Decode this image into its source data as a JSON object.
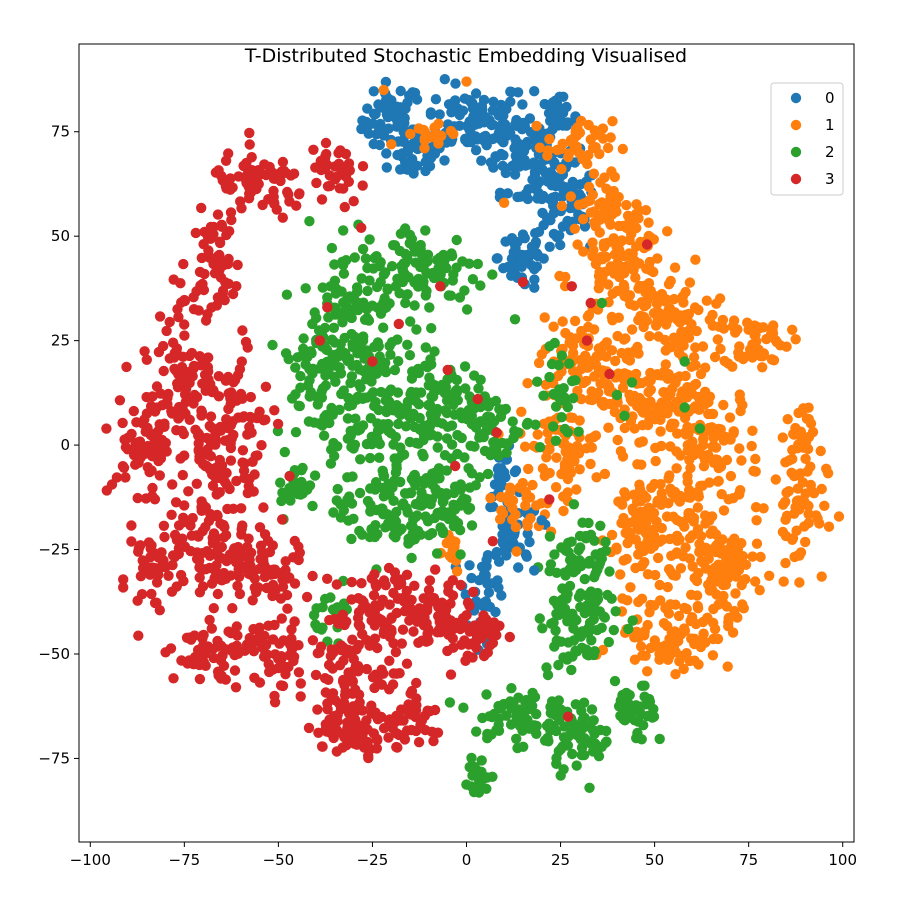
{
  "chart_data": {
    "type": "scatter",
    "title": "T-Distributed Stochastic Embedding Visualised",
    "xlabel": "",
    "ylabel": "",
    "xlim": [
      -103,
      103
    ],
    "ylim": [
      -95,
      96
    ],
    "x_ticks": [
      -100,
      -75,
      -50,
      -25,
      0,
      25,
      50,
      75,
      100
    ],
    "y_ticks": [
      -75,
      -50,
      -25,
      0,
      25,
      50,
      75
    ],
    "x_tick_labels": [
      "−100",
      "−75",
      "−50",
      "−25",
      "0",
      "25",
      "50",
      "75",
      "100"
    ],
    "y_tick_labels": [
      "−75",
      "−50",
      "−25",
      "0",
      "25",
      "50",
      "75"
    ],
    "grid": false,
    "legend_position": "top-right",
    "series": [
      {
        "name": "0",
        "color": "#1f77b4",
        "regions": [
          {
            "cx": -20,
            "cy": 78,
            "rx": 7,
            "ry": 8,
            "n": 50
          },
          {
            "cx": -14,
            "cy": 70,
            "rx": 7,
            "ry": 6,
            "n": 40
          },
          {
            "cx": 2,
            "cy": 78,
            "rx": 12,
            "ry": 8,
            "n": 90
          },
          {
            "cx": 14,
            "cy": 72,
            "rx": 9,
            "ry": 10,
            "n": 70
          },
          {
            "cx": 22,
            "cy": 62,
            "rx": 7,
            "ry": 12,
            "n": 60
          },
          {
            "cx": 24,
            "cy": 78,
            "rx": 5,
            "ry": 5,
            "n": 25
          },
          {
            "cx": 15,
            "cy": 45,
            "rx": 6,
            "ry": 8,
            "n": 45
          },
          {
            "cx": 28,
            "cy": 56,
            "rx": 6,
            "ry": 10,
            "n": 40
          },
          {
            "cx": 13,
            "cy": -22,
            "rx": 6,
            "ry": 8,
            "n": 40
          },
          {
            "cx": 5,
            "cy": -33,
            "rx": 5,
            "ry": 7,
            "n": 30
          },
          {
            "cx": 10,
            "cy": -8,
            "rx": 4,
            "ry": 6,
            "n": 20
          },
          {
            "cx": 3,
            "cy": -45,
            "rx": 4,
            "ry": 3,
            "n": 12
          }
        ]
      },
      {
        "name": "1",
        "color": "#ff7f0e",
        "regions": [
          {
            "cx": 40,
            "cy": 40,
            "rx": 12,
            "ry": 10,
            "n": 80
          },
          {
            "cx": 55,
            "cy": 30,
            "rx": 14,
            "ry": 9,
            "n": 90
          },
          {
            "cx": 77,
            "cy": 25,
            "rx": 8,
            "ry": 6,
            "n": 50
          },
          {
            "cx": 30,
            "cy": 20,
            "rx": 10,
            "ry": 10,
            "n": 80
          },
          {
            "cx": 50,
            "cy": 10,
            "rx": 14,
            "ry": 12,
            "n": 120
          },
          {
            "cx": 25,
            "cy": 0,
            "rx": 10,
            "ry": 12,
            "n": 80
          },
          {
            "cx": 65,
            "cy": 0,
            "rx": 12,
            "ry": 14,
            "n": 110
          },
          {
            "cx": 50,
            "cy": -20,
            "rx": 14,
            "ry": 14,
            "n": 140
          },
          {
            "cx": 68,
            "cy": -30,
            "rx": 10,
            "ry": 12,
            "n": 90
          },
          {
            "cx": 55,
            "cy": -45,
            "rx": 14,
            "ry": 8,
            "n": 90
          },
          {
            "cx": 88,
            "cy": -15,
            "rx": 7,
            "ry": 14,
            "n": 60
          },
          {
            "cx": 88,
            "cy": 2,
            "rx": 4,
            "ry": 6,
            "n": 25
          },
          {
            "cx": 30,
            "cy": 72,
            "rx": 8,
            "ry": 5,
            "n": 40
          },
          {
            "cx": 36,
            "cy": 58,
            "rx": 8,
            "ry": 8,
            "n": 50
          },
          {
            "cx": 45,
            "cy": 50,
            "rx": 5,
            "ry": 6,
            "n": 30
          },
          {
            "cx": -10,
            "cy": 75,
            "rx": 6,
            "ry": 3,
            "n": 15
          },
          {
            "cx": 15,
            "cy": -15,
            "rx": 6,
            "ry": 8,
            "n": 30
          },
          {
            "cx": -5,
            "cy": -25,
            "rx": 4,
            "ry": 5,
            "n": 15
          }
        ]
      },
      {
        "name": "2",
        "color": "#2ca02c",
        "regions": [
          {
            "cx": -12,
            "cy": 42,
            "rx": 16,
            "ry": 10,
            "n": 110
          },
          {
            "cx": -30,
            "cy": 35,
            "rx": 10,
            "ry": 12,
            "n": 70
          },
          {
            "cx": -40,
            "cy": 18,
            "rx": 10,
            "ry": 15,
            "n": 90
          },
          {
            "cx": -25,
            "cy": 10,
            "rx": 10,
            "ry": 16,
            "n": 110
          },
          {
            "cx": -10,
            "cy": 10,
            "rx": 10,
            "ry": 14,
            "n": 100
          },
          {
            "cx": 5,
            "cy": 5,
            "rx": 8,
            "ry": 10,
            "n": 60
          },
          {
            "cx": -20,
            "cy": -15,
            "rx": 14,
            "ry": 12,
            "n": 120
          },
          {
            "cx": -5,
            "cy": -12,
            "rx": 7,
            "ry": 8,
            "n": 50
          },
          {
            "cx": 30,
            "cy": -40,
            "rx": 10,
            "ry": 14,
            "n": 100
          },
          {
            "cx": 30,
            "cy": -25,
            "rx": 6,
            "ry": 8,
            "n": 40
          },
          {
            "cx": 15,
            "cy": -65,
            "rx": 12,
            "ry": 7,
            "n": 80
          },
          {
            "cx": 30,
            "cy": -70,
            "rx": 8,
            "ry": 7,
            "n": 50
          },
          {
            "cx": 45,
            "cy": -65,
            "rx": 5,
            "ry": 7,
            "n": 40
          },
          {
            "cx": 3,
            "cy": -80,
            "rx": 3,
            "ry": 5,
            "n": 20
          },
          {
            "cx": -45,
            "cy": -10,
            "rx": 5,
            "ry": 6,
            "n": 25
          },
          {
            "cx": -35,
            "cy": -40,
            "rx": 5,
            "ry": 5,
            "n": 20
          },
          {
            "cx": 25,
            "cy": 10,
            "rx": 8,
            "ry": 10,
            "n": 30
          }
        ]
      },
      {
        "name": "3",
        "color": "#d62728",
        "regions": [
          {
            "cx": -55,
            "cy": 62,
            "rx": 12,
            "ry": 7,
            "n": 70
          },
          {
            "cx": -35,
            "cy": 65,
            "rx": 6,
            "ry": 8,
            "n": 40
          },
          {
            "cx": -67,
            "cy": 45,
            "rx": 6,
            "ry": 10,
            "n": 50
          },
          {
            "cx": -75,
            "cy": 20,
            "rx": 10,
            "ry": 14,
            "n": 90
          },
          {
            "cx": -85,
            "cy": 0,
            "rx": 8,
            "ry": 10,
            "n": 70
          },
          {
            "cx": -65,
            "cy": 0,
            "rx": 12,
            "ry": 18,
            "n": 130
          },
          {
            "cx": -70,
            "cy": -25,
            "rx": 14,
            "ry": 14,
            "n": 120
          },
          {
            "cx": -55,
            "cy": -30,
            "rx": 10,
            "ry": 10,
            "n": 80
          },
          {
            "cx": -65,
            "cy": -50,
            "rx": 12,
            "ry": 6,
            "n": 70
          },
          {
            "cx": -48,
            "cy": -52,
            "rx": 6,
            "ry": 8,
            "n": 40
          },
          {
            "cx": -30,
            "cy": -55,
            "rx": 10,
            "ry": 14,
            "n": 90
          },
          {
            "cx": -20,
            "cy": -40,
            "rx": 12,
            "ry": 10,
            "n": 90
          },
          {
            "cx": -30,
            "cy": -68,
            "rx": 10,
            "ry": 5,
            "n": 60
          },
          {
            "cx": -15,
            "cy": -65,
            "rx": 6,
            "ry": 8,
            "n": 40
          },
          {
            "cx": -5,
            "cy": -42,
            "rx": 8,
            "ry": 8,
            "n": 60
          },
          {
            "cx": 5,
            "cy": -45,
            "rx": 5,
            "ry": 6,
            "n": 30
          },
          {
            "cx": -85,
            "cy": -30,
            "rx": 4,
            "ry": 8,
            "n": 25
          }
        ]
      }
    ],
    "outliers": [
      {
        "series": "3",
        "x": -28,
        "y": 52
      },
      {
        "series": "3",
        "x": -37,
        "y": 33
      },
      {
        "series": "3",
        "x": -18,
        "y": 29
      },
      {
        "series": "3",
        "x": -39,
        "y": 25
      },
      {
        "series": "3",
        "x": -25,
        "y": 20
      },
      {
        "series": "3",
        "x": -5,
        "y": 18
      },
      {
        "series": "3",
        "x": -7,
        "y": 38
      },
      {
        "series": "3",
        "x": 15,
        "y": 39
      },
      {
        "series": "3",
        "x": 48,
        "y": 48
      },
      {
        "series": "3",
        "x": 32,
        "y": 25
      },
      {
        "series": "3",
        "x": 38,
        "y": 17
      },
      {
        "series": "3",
        "x": 33,
        "y": 34
      },
      {
        "series": "3",
        "x": 28,
        "y": 38
      },
      {
        "series": "3",
        "x": 27,
        "y": -65
      },
      {
        "series": "3",
        "x": 22,
        "y": -13
      },
      {
        "series": "3",
        "x": 7,
        "y": -23
      },
      {
        "series": "3",
        "x": 3,
        "y": 11
      },
      {
        "series": "3",
        "x": 8,
        "y": 3
      },
      {
        "series": "3",
        "x": -3,
        "y": -5
      },
      {
        "series": "3",
        "x": -55,
        "y": 8
      },
      {
        "series": "2",
        "x": 43,
        "y": -44
      },
      {
        "series": "2",
        "x": 58,
        "y": 9
      },
      {
        "series": "2",
        "x": 62,
        "y": 4
      },
      {
        "series": "2",
        "x": 58,
        "y": 20
      },
      {
        "series": "2",
        "x": 42,
        "y": 7
      },
      {
        "series": "2",
        "x": 40,
        "y": 12
      },
      {
        "series": "2",
        "x": 36,
        "y": 34
      },
      {
        "series": "2",
        "x": 44,
        "y": 15
      },
      {
        "series": "1",
        "x": -22,
        "y": 85
      },
      {
        "series": "1",
        "x": -20,
        "y": 72
      },
      {
        "series": "1",
        "x": 0,
        "y": 87
      },
      {
        "series": "1",
        "x": 10,
        "y": 58
      },
      {
        "series": "0",
        "x": 20,
        "y": -18
      },
      {
        "series": "0",
        "x": 18,
        "y": -30
      }
    ]
  }
}
